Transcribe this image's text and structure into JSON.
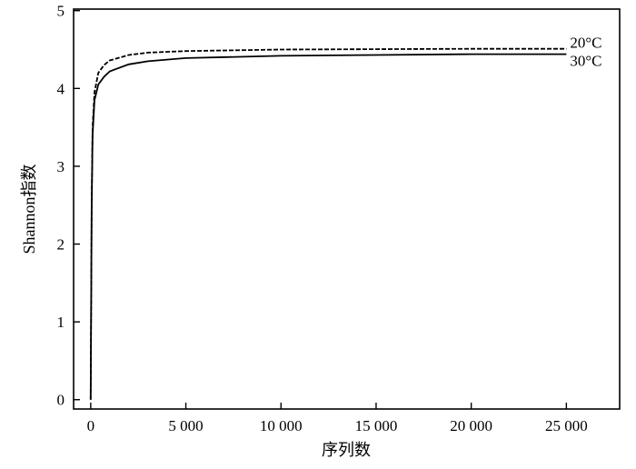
{
  "chart_data": {
    "type": "line",
    "title": "",
    "xlabel": "序列数",
    "ylabel": "Shannon指数",
    "xlim": [
      -900,
      27800
    ],
    "ylim": [
      -0.12,
      5.02
    ],
    "xticks": [
      0,
      5000,
      10000,
      15000,
      20000,
      25000
    ],
    "xtick_labels": [
      "0",
      "5 000",
      "10 000",
      "15 000",
      "20 000",
      "25 000"
    ],
    "yticks": [
      0,
      1,
      2,
      3,
      4,
      5
    ],
    "ytick_labels": [
      "0",
      "1",
      "2",
      "3",
      "4",
      "5"
    ],
    "grid": false,
    "legend": "inline labels at right end of lines",
    "series": [
      {
        "name": "20°C",
        "style": "dashed",
        "color": "#000000",
        "x": [
          0,
          50,
          100,
          200,
          400,
          700,
          1000,
          2000,
          3000,
          5000,
          10000,
          15000,
          20000,
          25000
        ],
        "y": [
          0,
          2.5,
          3.5,
          3.95,
          4.2,
          4.3,
          4.36,
          4.43,
          4.46,
          4.48,
          4.5,
          4.505,
          4.51,
          4.51
        ]
      },
      {
        "name": "30°C",
        "style": "solid",
        "color": "#000000",
        "x": [
          0,
          50,
          100,
          200,
          400,
          700,
          1000,
          2000,
          3000,
          5000,
          10000,
          15000,
          20000,
          25000
        ],
        "y": [
          0,
          2.5,
          3.4,
          3.85,
          4.05,
          4.15,
          4.22,
          4.31,
          4.35,
          4.39,
          4.42,
          4.43,
          4.44,
          4.44
        ]
      }
    ]
  }
}
